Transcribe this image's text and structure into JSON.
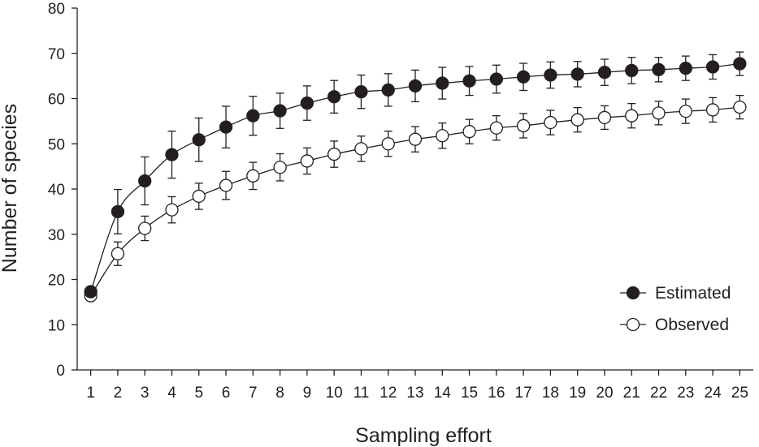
{
  "chart_data": {
    "type": "line",
    "title": "",
    "xlabel": "Sampling effort",
    "ylabel": "Number of species",
    "x": [
      1,
      2,
      3,
      4,
      5,
      6,
      7,
      8,
      9,
      10,
      11,
      12,
      13,
      14,
      15,
      16,
      17,
      18,
      19,
      20,
      21,
      22,
      23,
      24,
      25
    ],
    "xticks": [
      "1",
      "2",
      "3",
      "4",
      "5",
      "6",
      "7",
      "8",
      "9",
      "10",
      "11",
      "12",
      "13",
      "14",
      "15",
      "16",
      "17",
      "18",
      "19",
      "20",
      "21",
      "22",
      "23",
      "24",
      "25"
    ],
    "ylim": [
      0,
      80
    ],
    "yticks": [
      "0",
      "10",
      "20",
      "30",
      "40",
      "50",
      "60",
      "70",
      "80"
    ],
    "grid": false,
    "legend_position": "bottom-right",
    "series": [
      {
        "name": "Estimated",
        "marker": "filled-circle",
        "color": "#231f20",
        "values": [
          17.3,
          35.0,
          41.8,
          47.6,
          50.9,
          53.7,
          56.2,
          57.3,
          59.0,
          60.4,
          61.5,
          61.9,
          62.8,
          63.4,
          63.9,
          64.3,
          64.8,
          65.2,
          65.4,
          65.8,
          66.2,
          66.4,
          66.7,
          67.0,
          67.7
        ],
        "error": [
          0.5,
          4.9,
          5.3,
          5.2,
          4.8,
          4.6,
          4.3,
          3.9,
          3.8,
          3.6,
          3.7,
          3.6,
          3.5,
          3.5,
          3.2,
          3.1,
          3.0,
          2.9,
          2.8,
          2.9,
          2.9,
          2.7,
          2.7,
          2.7,
          2.6
        ]
      },
      {
        "name": "Observed",
        "marker": "open-circle",
        "color": "#231f20",
        "values": [
          16.4,
          25.7,
          31.3,
          35.4,
          38.4,
          40.8,
          42.9,
          44.8,
          46.2,
          47.7,
          48.9,
          50.0,
          51.0,
          51.8,
          52.7,
          53.5,
          54.0,
          54.7,
          55.3,
          55.8,
          56.2,
          56.8,
          57.2,
          57.5,
          58.1
        ],
        "error": [
          0.3,
          2.6,
          2.7,
          2.9,
          2.9,
          3.1,
          3.0,
          3.0,
          2.9,
          2.9,
          2.8,
          2.8,
          2.8,
          2.8,
          2.7,
          2.7,
          2.7,
          2.7,
          2.7,
          2.6,
          2.7,
          2.6,
          2.7,
          2.7,
          2.6
        ]
      }
    ]
  }
}
